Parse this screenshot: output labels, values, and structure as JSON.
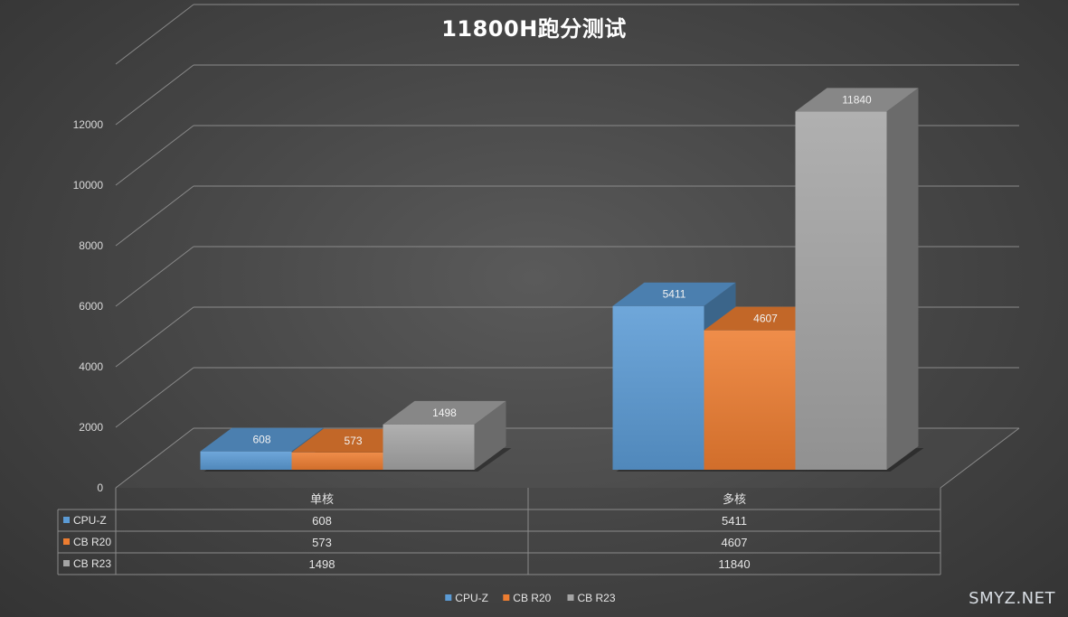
{
  "chart_data": {
    "type": "bar",
    "title": "11800H跑分测试",
    "categories": [
      "单核",
      "多核"
    ],
    "series": [
      {
        "name": "CPU-Z",
        "values": [
          608,
          5411
        ],
        "color": "#5b9bd5"
      },
      {
        "name": "CB R20",
        "values": [
          573,
          4607
        ],
        "color": "#ed7d31"
      },
      {
        "name": "CB R23",
        "values": [
          1498,
          11840
        ],
        "color": "#a5a5a5"
      }
    ],
    "yticks": [
      0,
      2000,
      4000,
      6000,
      8000,
      10000,
      12000
    ],
    "ylim": [
      0,
      12000
    ],
    "xlabel": "",
    "ylabel": "",
    "grid": true,
    "data_table": true,
    "legend_position": "bottom"
  },
  "watermark": "SMYZ.NET"
}
